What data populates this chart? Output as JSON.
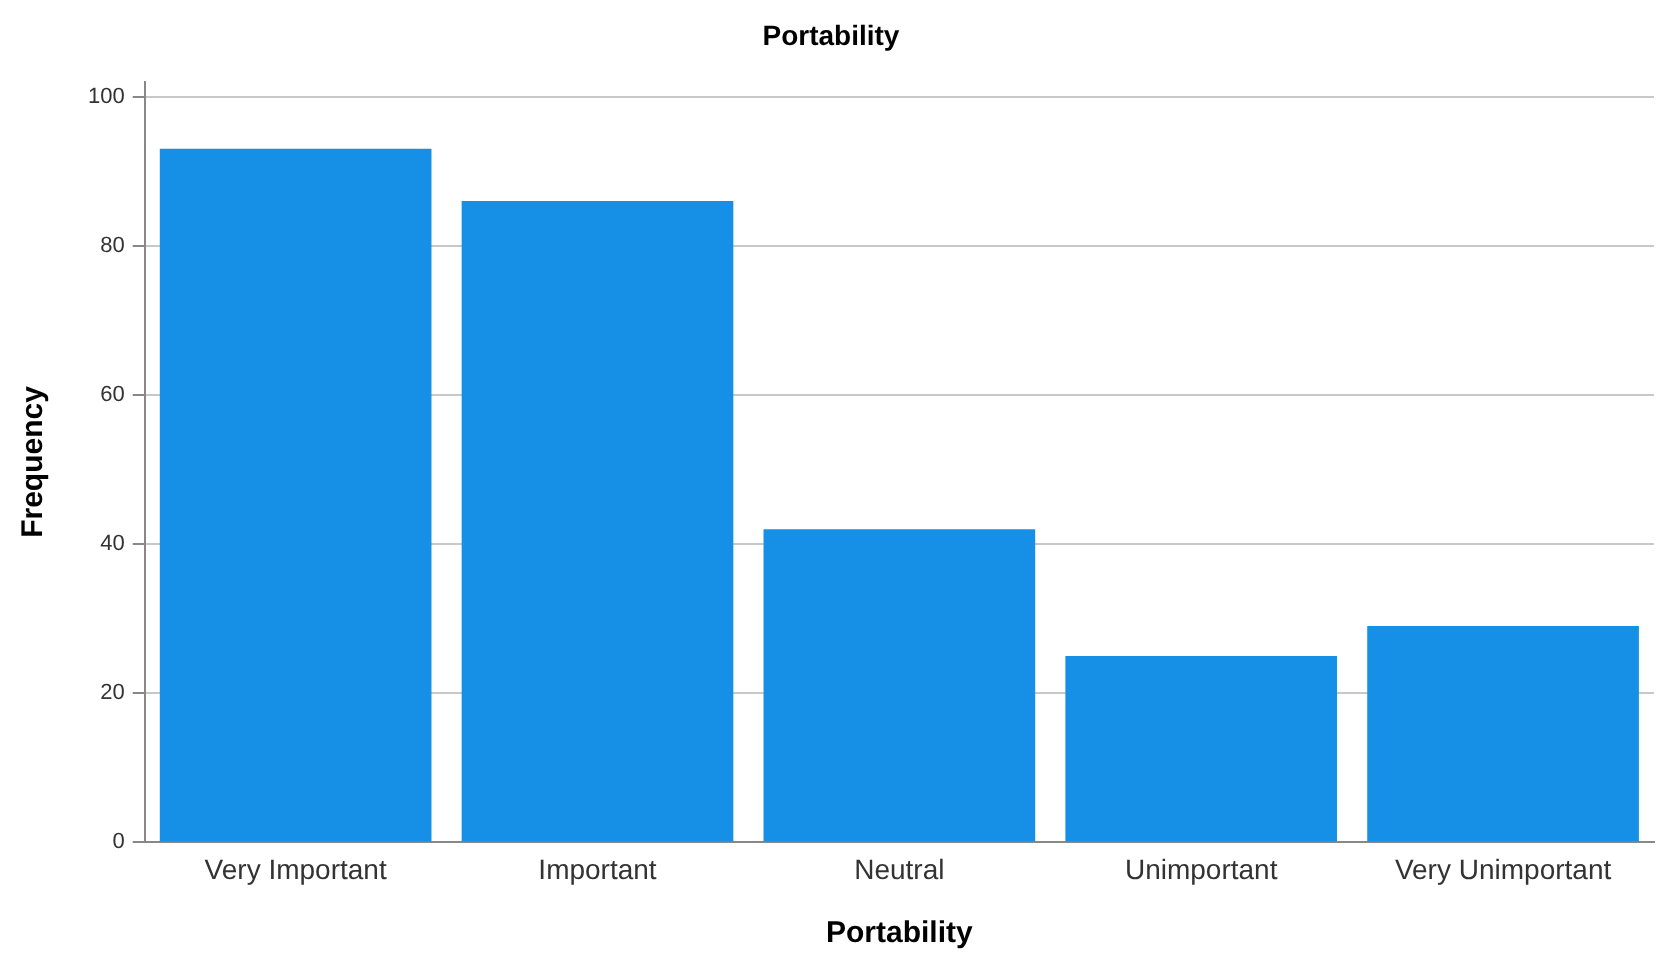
{
  "chart_data": {
    "type": "bar",
    "title": "Portability",
    "xlabel": "Portability",
    "ylabel": "Frequency",
    "categories": [
      "Very Important",
      "Important",
      "Neutral",
      "Unimportant",
      "Very Unimportant"
    ],
    "values": [
      93,
      86,
      42,
      25,
      29
    ],
    "color": "#1690e6",
    "ylim": [
      0,
      102
    ],
    "yticks": [
      0,
      20,
      40,
      60,
      80,
      100
    ],
    "grid": "y",
    "legend": false
  }
}
